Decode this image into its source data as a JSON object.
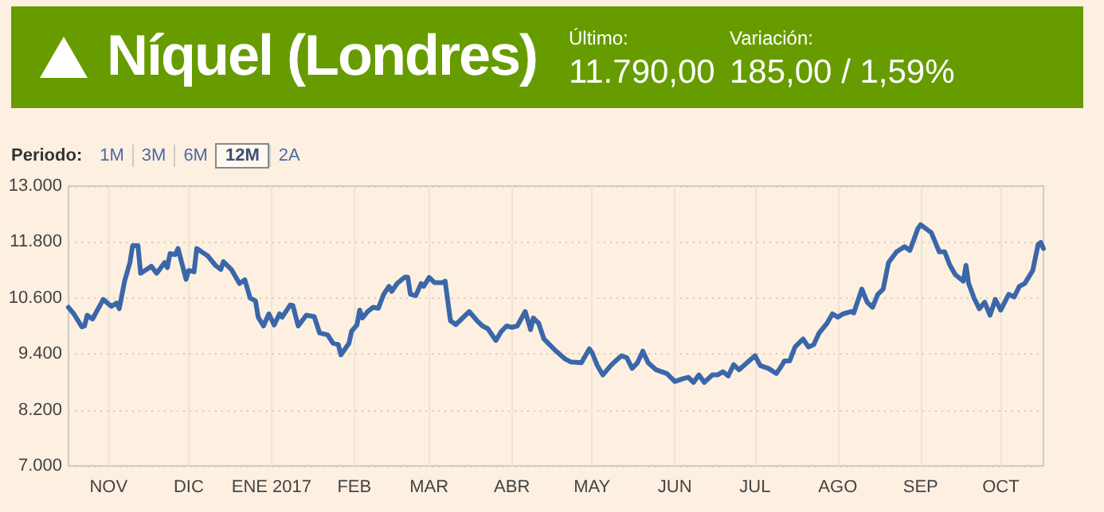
{
  "chart_data": {
    "type": "line",
    "title": "Níquel (Londres)",
    "annotations": [
      "Último:",
      "11.790,00",
      "Variación:",
      "185,00 / 1,59%",
      "Periodo:",
      "1M",
      "3M",
      "6M",
      "12M",
      "2A"
    ],
    "x": [
      "2016-10-17",
      "2016-10-19",
      "2016-10-22",
      "2016-10-23",
      "2016-10-24",
      "2016-10-26",
      "2016-10-30",
      "2016-11-02",
      "2016-11-04",
      "2016-11-05",
      "2016-11-07",
      "2016-11-09",
      "2016-11-10",
      "2016-11-12",
      "2016-11-13",
      "2016-11-17",
      "2016-11-19",
      "2016-11-22",
      "2016-11-23",
      "2016-11-24",
      "2016-11-26",
      "2016-11-27",
      "2016-11-30",
      "2016-12-01",
      "2016-12-03",
      "2016-12-04",
      "2016-12-08",
      "2016-12-11",
      "2016-12-13",
      "2016-12-14",
      "2016-12-17",
      "2016-12-20",
      "2016-12-22",
      "2016-12-24",
      "2016-12-26",
      "2016-12-27",
      "2016-12-29",
      "2016-12-31",
      "2017-01-02",
      "2017-01-04",
      "2017-01-05",
      "2017-01-08",
      "2017-01-09",
      "2017-01-11",
      "2017-01-14",
      "2017-01-17",
      "2017-01-19",
      "2017-01-22",
      "2017-01-24",
      "2017-01-26",
      "2017-01-27",
      "2017-01-30",
      "2017-01-31",
      "2017-02-02",
      "2017-02-03",
      "2017-02-04",
      "2017-02-06",
      "2017-02-08",
      "2017-02-10",
      "2017-02-12",
      "2017-02-14",
      "2017-02-15",
      "2017-02-17",
      "2017-02-20",
      "2017-02-21",
      "2017-02-22",
      "2017-02-24",
      "2017-02-26",
      "2017-02-27",
      "2017-03-01",
      "2017-03-03",
      "2017-03-06",
      "2017-03-07",
      "2017-03-09",
      "2017-03-11",
      "2017-03-13",
      "2017-03-16",
      "2017-03-19",
      "2017-03-21",
      "2017-03-23",
      "2017-03-26",
      "2017-03-28",
      "2017-03-30",
      "2017-04-01",
      "2017-04-03",
      "2017-04-06",
      "2017-04-08",
      "2017-04-09",
      "2017-04-11",
      "2017-04-13",
      "2017-04-17",
      "2017-04-21",
      "2017-04-23",
      "2017-04-27",
      "2017-04-30",
      "2017-05-01",
      "2017-05-03",
      "2017-05-05",
      "2017-05-08",
      "2017-05-10",
      "2017-05-12",
      "2017-05-14",
      "2017-05-16",
      "2017-05-18",
      "2017-05-20",
      "2017-05-22",
      "2017-05-25",
      "2017-05-29",
      "2017-06-01",
      "2017-06-04",
      "2017-06-06",
      "2017-06-08",
      "2017-06-10",
      "2017-06-12",
      "2017-06-15",
      "2017-06-17",
      "2017-06-19",
      "2017-06-21",
      "2017-06-23",
      "2017-06-25",
      "2017-06-28",
      "2017-07-01",
      "2017-07-03",
      "2017-07-06",
      "2017-07-09",
      "2017-07-11",
      "2017-07-12",
      "2017-07-14",
      "2017-07-16",
      "2017-07-19",
      "2017-07-21",
      "2017-07-23",
      "2017-07-25",
      "2017-07-28",
      "2017-07-30",
      "2017-08-01",
      "2017-08-03",
      "2017-08-06",
      "2017-08-07",
      "2017-08-10",
      "2017-08-12",
      "2017-08-14",
      "2017-08-16",
      "2017-08-18",
      "2017-08-20",
      "2017-08-23",
      "2017-08-26",
      "2017-08-28",
      "2017-08-31",
      "2017-09-01",
      "2017-09-05",
      "2017-09-08",
      "2017-09-10",
      "2017-09-12",
      "2017-09-14",
      "2017-09-17",
      "2017-09-18",
      "2017-09-19",
      "2017-09-21",
      "2017-09-23",
      "2017-09-25",
      "2017-09-27",
      "2017-09-29",
      "2017-10-01",
      "2017-10-04",
      "2017-10-06",
      "2017-10-08",
      "2017-10-10",
      "2017-10-13",
      "2017-10-15",
      "2017-10-16",
      "2017-10-17"
    ],
    "series": [
      {
        "color": "#3b67a9",
        "values": [
          10400,
          10260,
          9980,
          10000,
          10230,
          10150,
          10570,
          10420,
          10490,
          10370,
          10960,
          11360,
          11720,
          11720,
          11130,
          11280,
          11130,
          11360,
          11250,
          11550,
          11530,
          11660,
          11000,
          11190,
          11160,
          11660,
          11510,
          11300,
          11210,
          11380,
          11210,
          10910,
          10990,
          10600,
          10540,
          10190,
          10000,
          10260,
          10020,
          10260,
          10190,
          10450,
          10440,
          10000,
          10230,
          10200,
          9850,
          9810,
          9630,
          9600,
          9380,
          9630,
          9890,
          10020,
          10340,
          10170,
          10310,
          10400,
          10380,
          10680,
          10850,
          10740,
          10910,
          11050,
          11050,
          10680,
          10650,
          10910,
          10850,
          11040,
          10930,
          10930,
          10960,
          10110,
          10030,
          10140,
          10310,
          10110,
          10000,
          9940,
          9690,
          9880,
          10000,
          9970,
          10000,
          10310,
          9920,
          10170,
          10060,
          9720,
          9490,
          9290,
          9230,
          9210,
          9510,
          9430,
          9150,
          8950,
          9150,
          9260,
          9360,
          9320,
          9090,
          9210,
          9460,
          9210,
          9060,
          8980,
          8810,
          8870,
          8900,
          8790,
          8950,
          8790,
          8950,
          8950,
          9020,
          8930,
          9170,
          9060,
          9210,
          9360,
          9150,
          9090,
          8980,
          9150,
          9250,
          9250,
          9550,
          9720,
          9550,
          9600,
          9850,
          10060,
          10260,
          10190,
          10260,
          10310,
          10280,
          10790,
          10510,
          10400,
          10680,
          10790,
          11360,
          11590,
          11700,
          11620,
          12090,
          12170,
          12000,
          11590,
          11590,
          11300,
          11100,
          10960,
          11300,
          10910,
          10600,
          10370,
          10510,
          10230,
          10570,
          10340,
          10680,
          10620,
          10850,
          10910,
          11190,
          11750,
          11790,
          11660
        ]
      }
    ],
    "xlim": [
      "2016-10-17",
      "2017-10-17"
    ],
    "xticks": [
      {
        "value": "2016-11-01",
        "label": "NOV"
      },
      {
        "value": "2016-12-01",
        "label": "DIC"
      },
      {
        "value": "2017-01-01",
        "label": "ENE 2017"
      },
      {
        "value": "2017-02-01",
        "label": "FEB"
      },
      {
        "value": "2017-03-01",
        "label": "MAR"
      },
      {
        "value": "2017-04-01",
        "label": "ABR"
      },
      {
        "value": "2017-05-01",
        "label": "MAY"
      },
      {
        "value": "2017-06-01",
        "label": "JUN"
      },
      {
        "value": "2017-07-01",
        "label": "JUL"
      },
      {
        "value": "2017-08-01",
        "label": "AGO"
      },
      {
        "value": "2017-09-01",
        "label": "SEP"
      },
      {
        "value": "2017-10-01",
        "label": "OCT"
      }
    ],
    "ylim": [
      7000,
      13000
    ],
    "yticks": [
      {
        "value": 7000,
        "label": "7.000"
      },
      {
        "value": 8200,
        "label": "8.200"
      },
      {
        "value": 9400,
        "label": "9.400"
      },
      {
        "value": 10600,
        "label": "10.600"
      },
      {
        "value": 11800,
        "label": "11.800"
      },
      {
        "value": 13000,
        "label": "13.000"
      }
    ],
    "grid": true,
    "marker": "none",
    "line_style": "solid"
  }
}
